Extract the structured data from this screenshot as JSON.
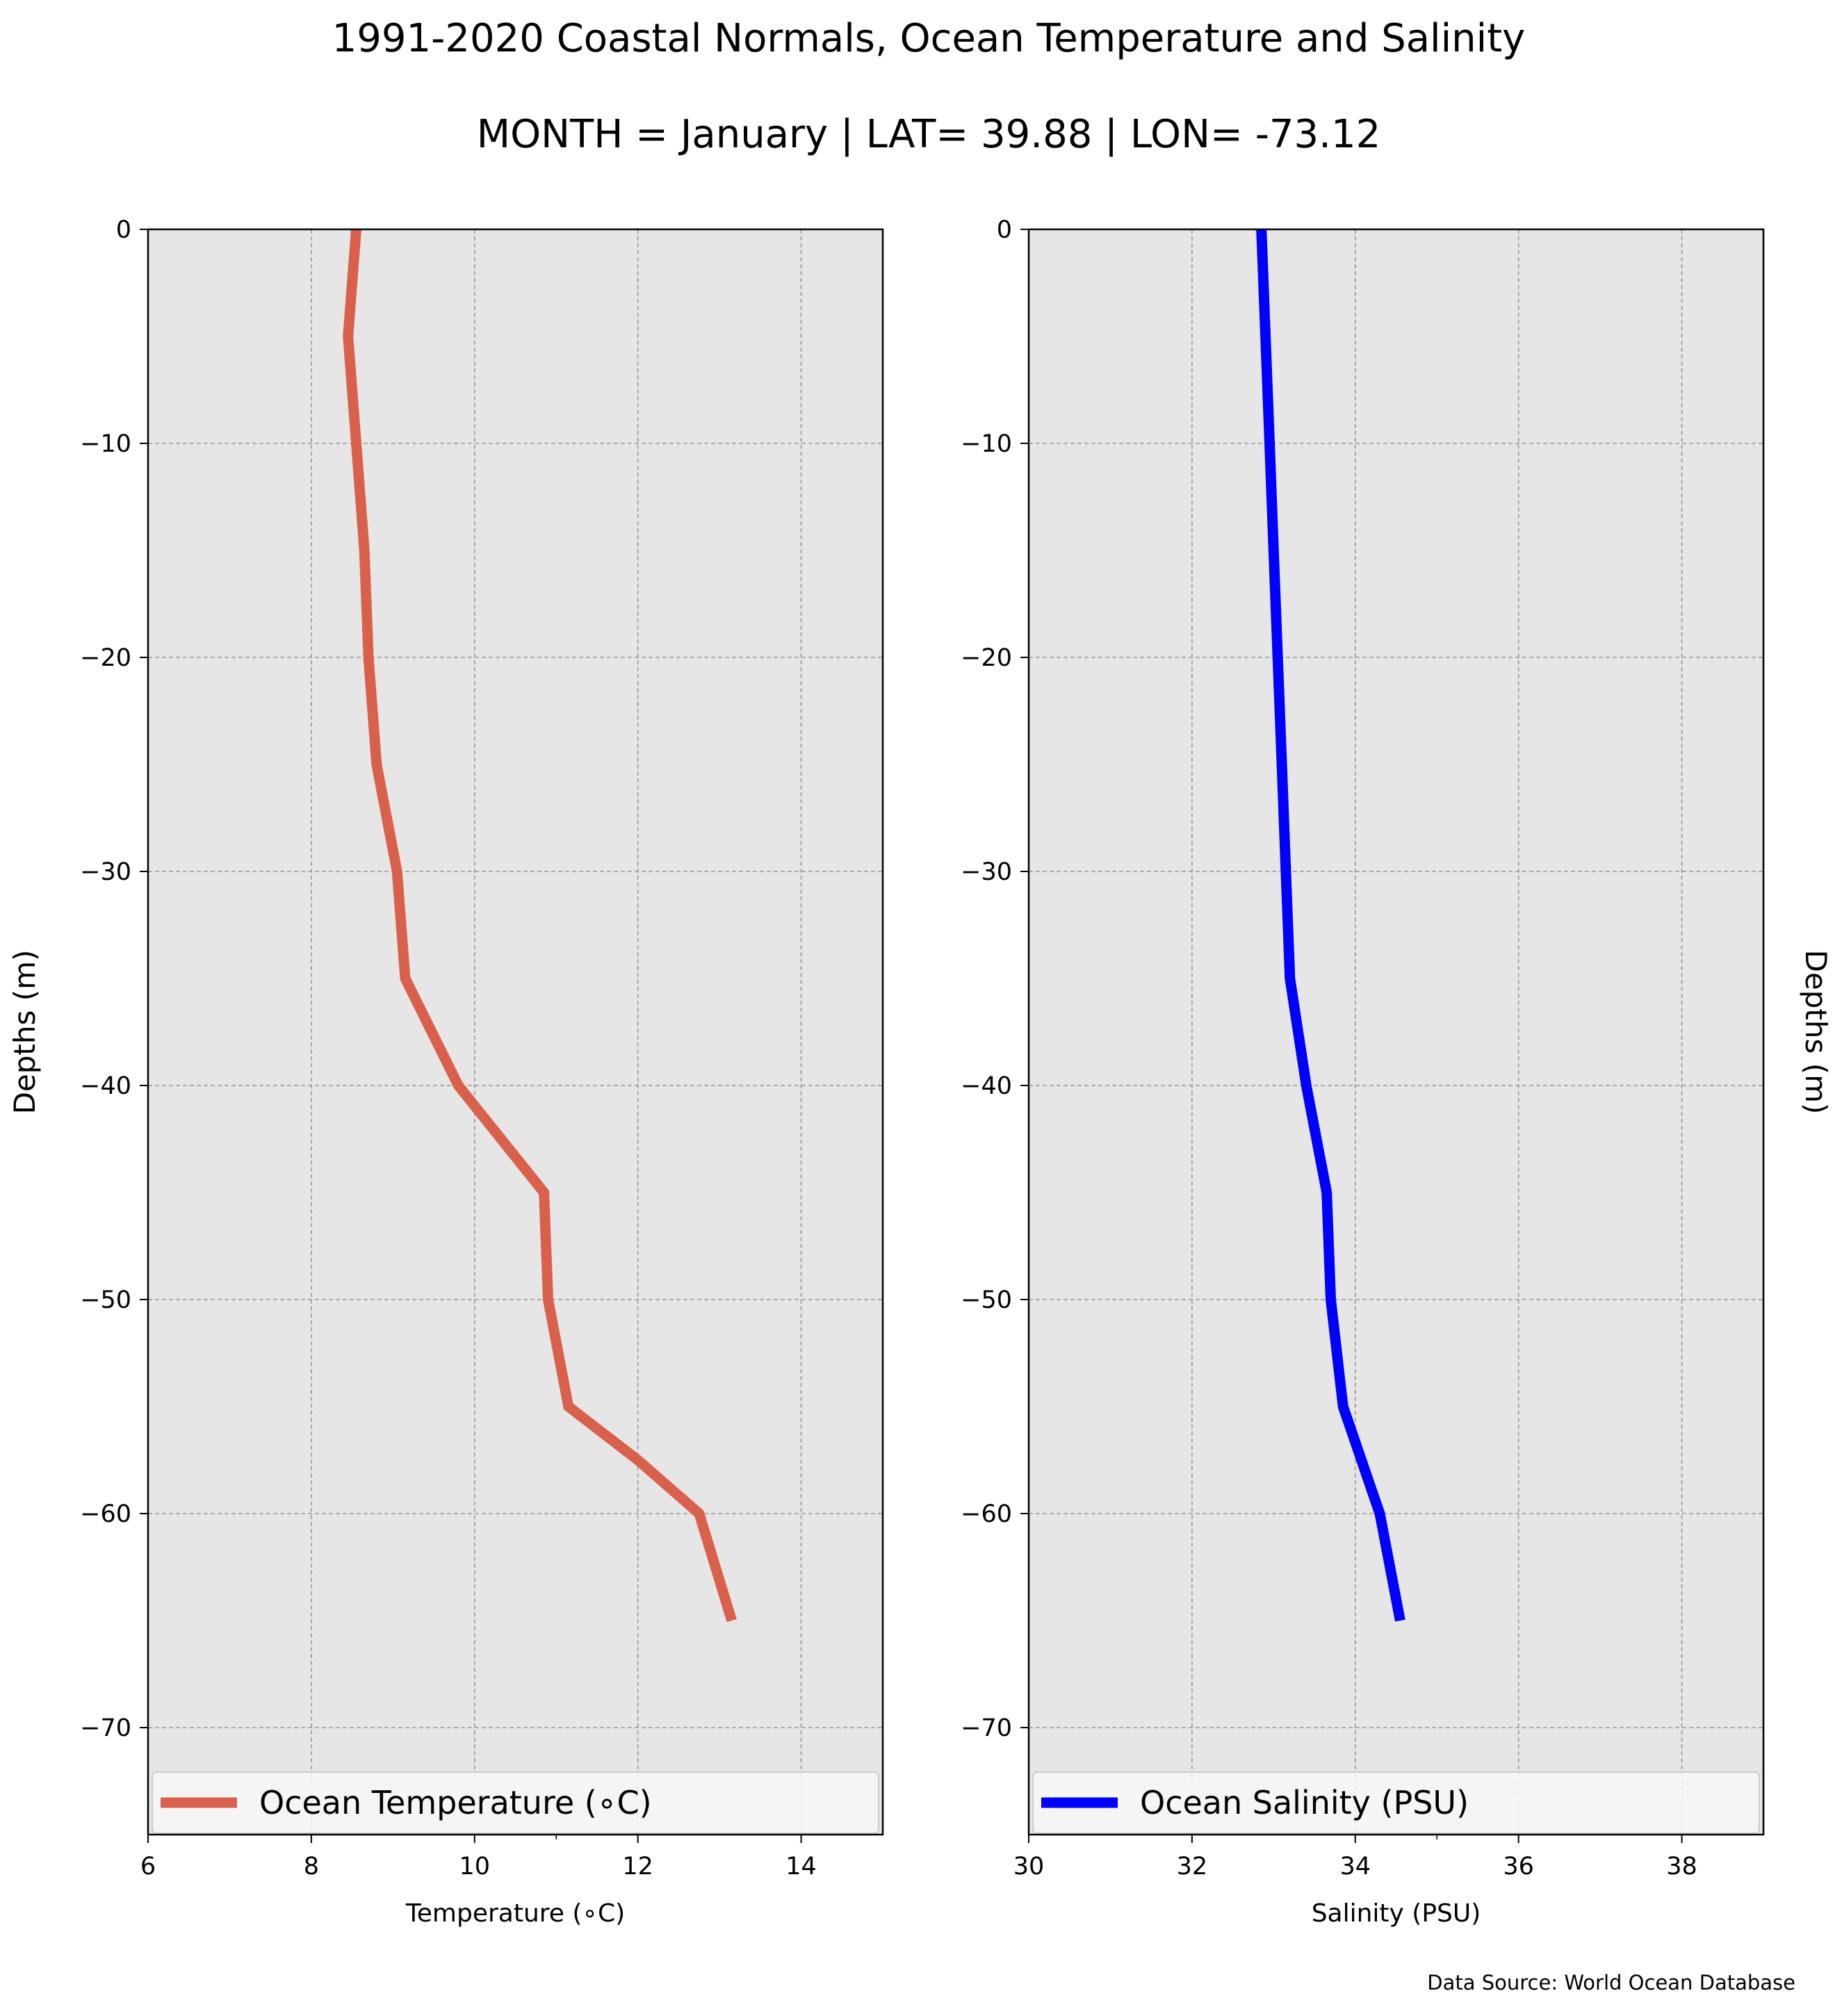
{
  "title": "1991-2020 Coastal Normals, Ocean Temperature and Salinity",
  "subtitle": "MONTH = January | LAT= 39.88 | LON= -73.12",
  "source_note": "Data Source: World Ocean Database",
  "colors": {
    "plot_background": "#e6e6e6",
    "grid": "#999999",
    "temperature_line": "#d9614c",
    "salinity_line": "#0000ff",
    "legend_background": "#f7f7f7"
  },
  "chart_data": [
    {
      "type": "line",
      "id": "temperature",
      "xlabel": "Temperature (∘C)",
      "ylabel": "Depths (m)",
      "ylabel_side": "left",
      "xlim": [
        6,
        15
      ],
      "ylim": [
        -75,
        0
      ],
      "xticks": [
        6,
        8,
        10,
        12,
        14
      ],
      "xtick_labels": [
        "6",
        "8",
        "10",
        "12",
        "14"
      ],
      "minor_xticks": [
        11
      ],
      "yticks": [
        0,
        -10,
        -20,
        -30,
        -40,
        -50,
        -60,
        -70
      ],
      "ytick_labels": [
        "0",
        "−10",
        "−20",
        "−30",
        "−40",
        "−50",
        "−60",
        "−70"
      ],
      "grid": true,
      "legend": "bottom",
      "series": [
        {
          "name": "Ocean Temperature (∘C)",
          "color": "#d9614c",
          "x": [
            8.55,
            8.45,
            8.55,
            8.65,
            8.7,
            8.8,
            9.05,
            9.15,
            9.8,
            10.85,
            10.9,
            11.15,
            12.0,
            12.75,
            13.15
          ],
          "y": [
            0,
            -5,
            -10,
            -15,
            -20,
            -25,
            -30,
            -35,
            -40,
            -45,
            -50,
            -55,
            -57.5,
            -60,
            -65
          ]
        }
      ]
    },
    {
      "type": "line",
      "id": "salinity",
      "xlabel": "Salinity (PSU)",
      "ylabel": "Depths (m)",
      "ylabel_side": "right",
      "xlim": [
        30,
        39
      ],
      "ylim": [
        -75,
        0
      ],
      "xticks": [
        30,
        32,
        34,
        36,
        38
      ],
      "xtick_labels": [
        "30",
        "32",
        "34",
        "36",
        "38"
      ],
      "minor_xticks": [
        35
      ],
      "yticks": [
        0,
        -10,
        -20,
        -30,
        -40,
        -50,
        -60,
        -70
      ],
      "ytick_labels": [
        "0",
        "−10",
        "−20",
        "−30",
        "−40",
        "−50",
        "−60",
        "−70"
      ],
      "grid": true,
      "legend": "bottom",
      "series": [
        {
          "name": "Ocean Salinity (PSU)",
          "color": "#0000ff",
          "x": [
            32.85,
            32.9,
            32.95,
            33.0,
            33.05,
            33.1,
            33.15,
            33.2,
            33.4,
            33.65,
            33.7,
            33.85,
            34.3,
            34.55
          ],
          "y": [
            0,
            -5,
            -10,
            -15,
            -20,
            -25,
            -30,
            -35,
            -40,
            -45,
            -50,
            -55,
            -60,
            -65
          ]
        }
      ]
    }
  ]
}
